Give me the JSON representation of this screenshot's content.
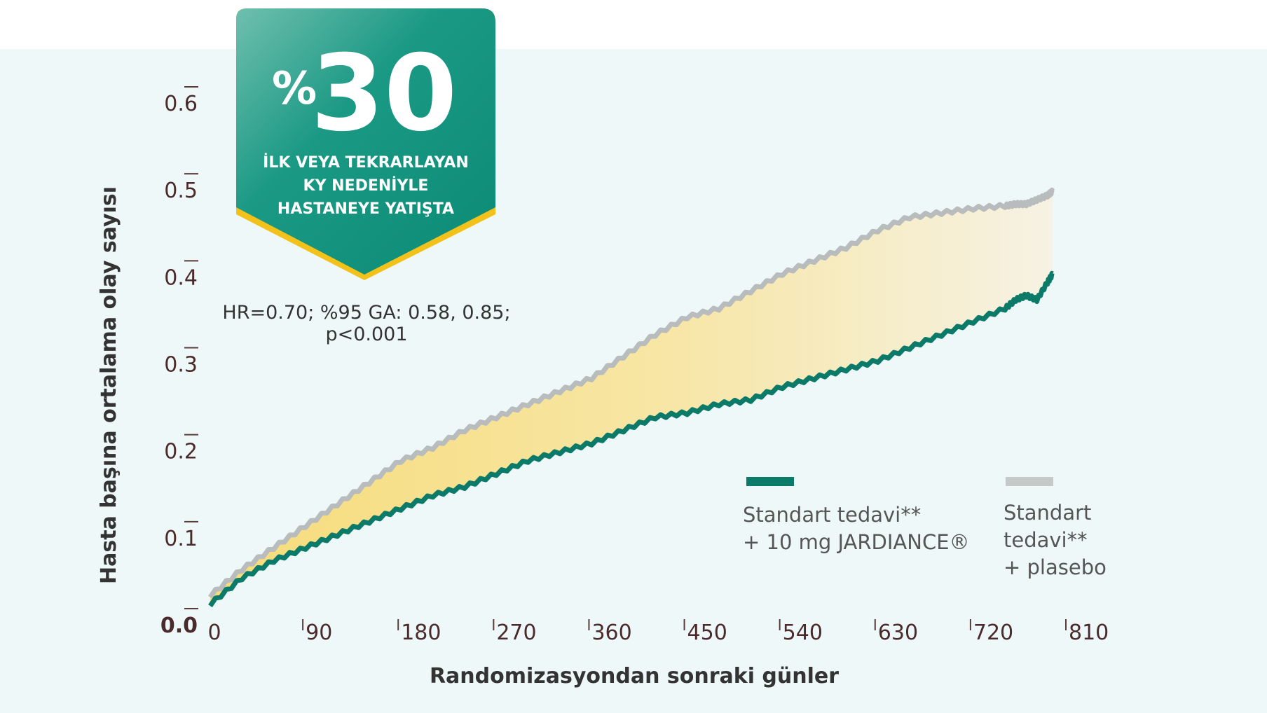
{
  "chart_data": {
    "type": "line",
    "xlabel": "Randomizasyondan sonraki günler",
    "ylabel": "Hasta başına ortalama olay sayısı",
    "xlim": [
      0,
      810
    ],
    "ylim": [
      0,
      0.6
    ],
    "x_ticks": [
      0,
      90,
      180,
      270,
      360,
      450,
      540,
      630,
      720,
      810
    ],
    "x_tick_labels": [
      "0",
      "90",
      "180",
      "270",
      "360",
      "450",
      "540",
      "630",
      "720",
      "810"
    ],
    "y_ticks": [
      0,
      0.1,
      0.2,
      0.3,
      0.4,
      0.5,
      0.6
    ],
    "y_tick_labels": [
      "0.0",
      "0.1",
      "0.2",
      "0.3",
      "0.4",
      "0.5",
      "0.6"
    ],
    "series": [
      {
        "name": "Standart tedavi** + 10 mg JARDIANCE®",
        "color": "#0b7a68",
        "x": [
          0,
          30,
          60,
          90,
          120,
          150,
          180,
          210,
          240,
          270,
          300,
          330,
          360,
          390,
          420,
          450,
          480,
          510,
          540,
          570,
          600,
          630,
          660,
          690,
          720,
          750,
          760,
          770,
          780,
          790,
          795
        ],
        "values": [
          0.01,
          0.04,
          0.06,
          0.075,
          0.09,
          0.105,
          0.12,
          0.135,
          0.145,
          0.16,
          0.175,
          0.185,
          0.195,
          0.21,
          0.225,
          0.23,
          0.24,
          0.245,
          0.26,
          0.27,
          0.28,
          0.29,
          0.305,
          0.32,
          0.335,
          0.35,
          0.36,
          0.365,
          0.36,
          0.38,
          0.39
        ]
      },
      {
        "name": "Standart tedavi** + plasebo",
        "color": "#b9bcbc",
        "x": [
          0,
          30,
          60,
          90,
          120,
          150,
          180,
          210,
          240,
          270,
          300,
          330,
          360,
          390,
          420,
          450,
          480,
          510,
          540,
          570,
          600,
          630,
          660,
          690,
          720,
          750,
          760,
          770,
          780,
          790,
          795
        ],
        "values": [
          0.02,
          0.05,
          0.075,
          0.1,
          0.125,
          0.15,
          0.175,
          0.19,
          0.21,
          0.225,
          0.24,
          0.255,
          0.27,
          0.295,
          0.32,
          0.34,
          0.35,
          0.37,
          0.39,
          0.405,
          0.42,
          0.44,
          0.455,
          0.46,
          0.465,
          0.468,
          0.47,
          0.47,
          0.475,
          0.48,
          0.485
        ]
      }
    ],
    "fill_between": {
      "color_start": "#f7dc7a",
      "color_end": "#f6f2e4"
    },
    "badge": {
      "value": "30",
      "prefix": "%",
      "line1": "İLK VEYA TEKRARLAYAN",
      "line2": "KY NEDENİYLE",
      "line3": "HASTANEYE YATIŞTA",
      "color": "#0e8f7a",
      "accent": "#f2c21b"
    },
    "stats": {
      "line1": "HR=0.70; %95 GA: 0.58, 0.85;",
      "line2": "p<0.001"
    },
    "legend": {
      "jardiance_line1": "Standart tedavi**",
      "jardiance_line2": "+ 10 mg JARDIANCE®",
      "placebo_line1": "Standart",
      "placebo_line2": "tedavi**",
      "placebo_line3": "+ plasebo"
    }
  }
}
